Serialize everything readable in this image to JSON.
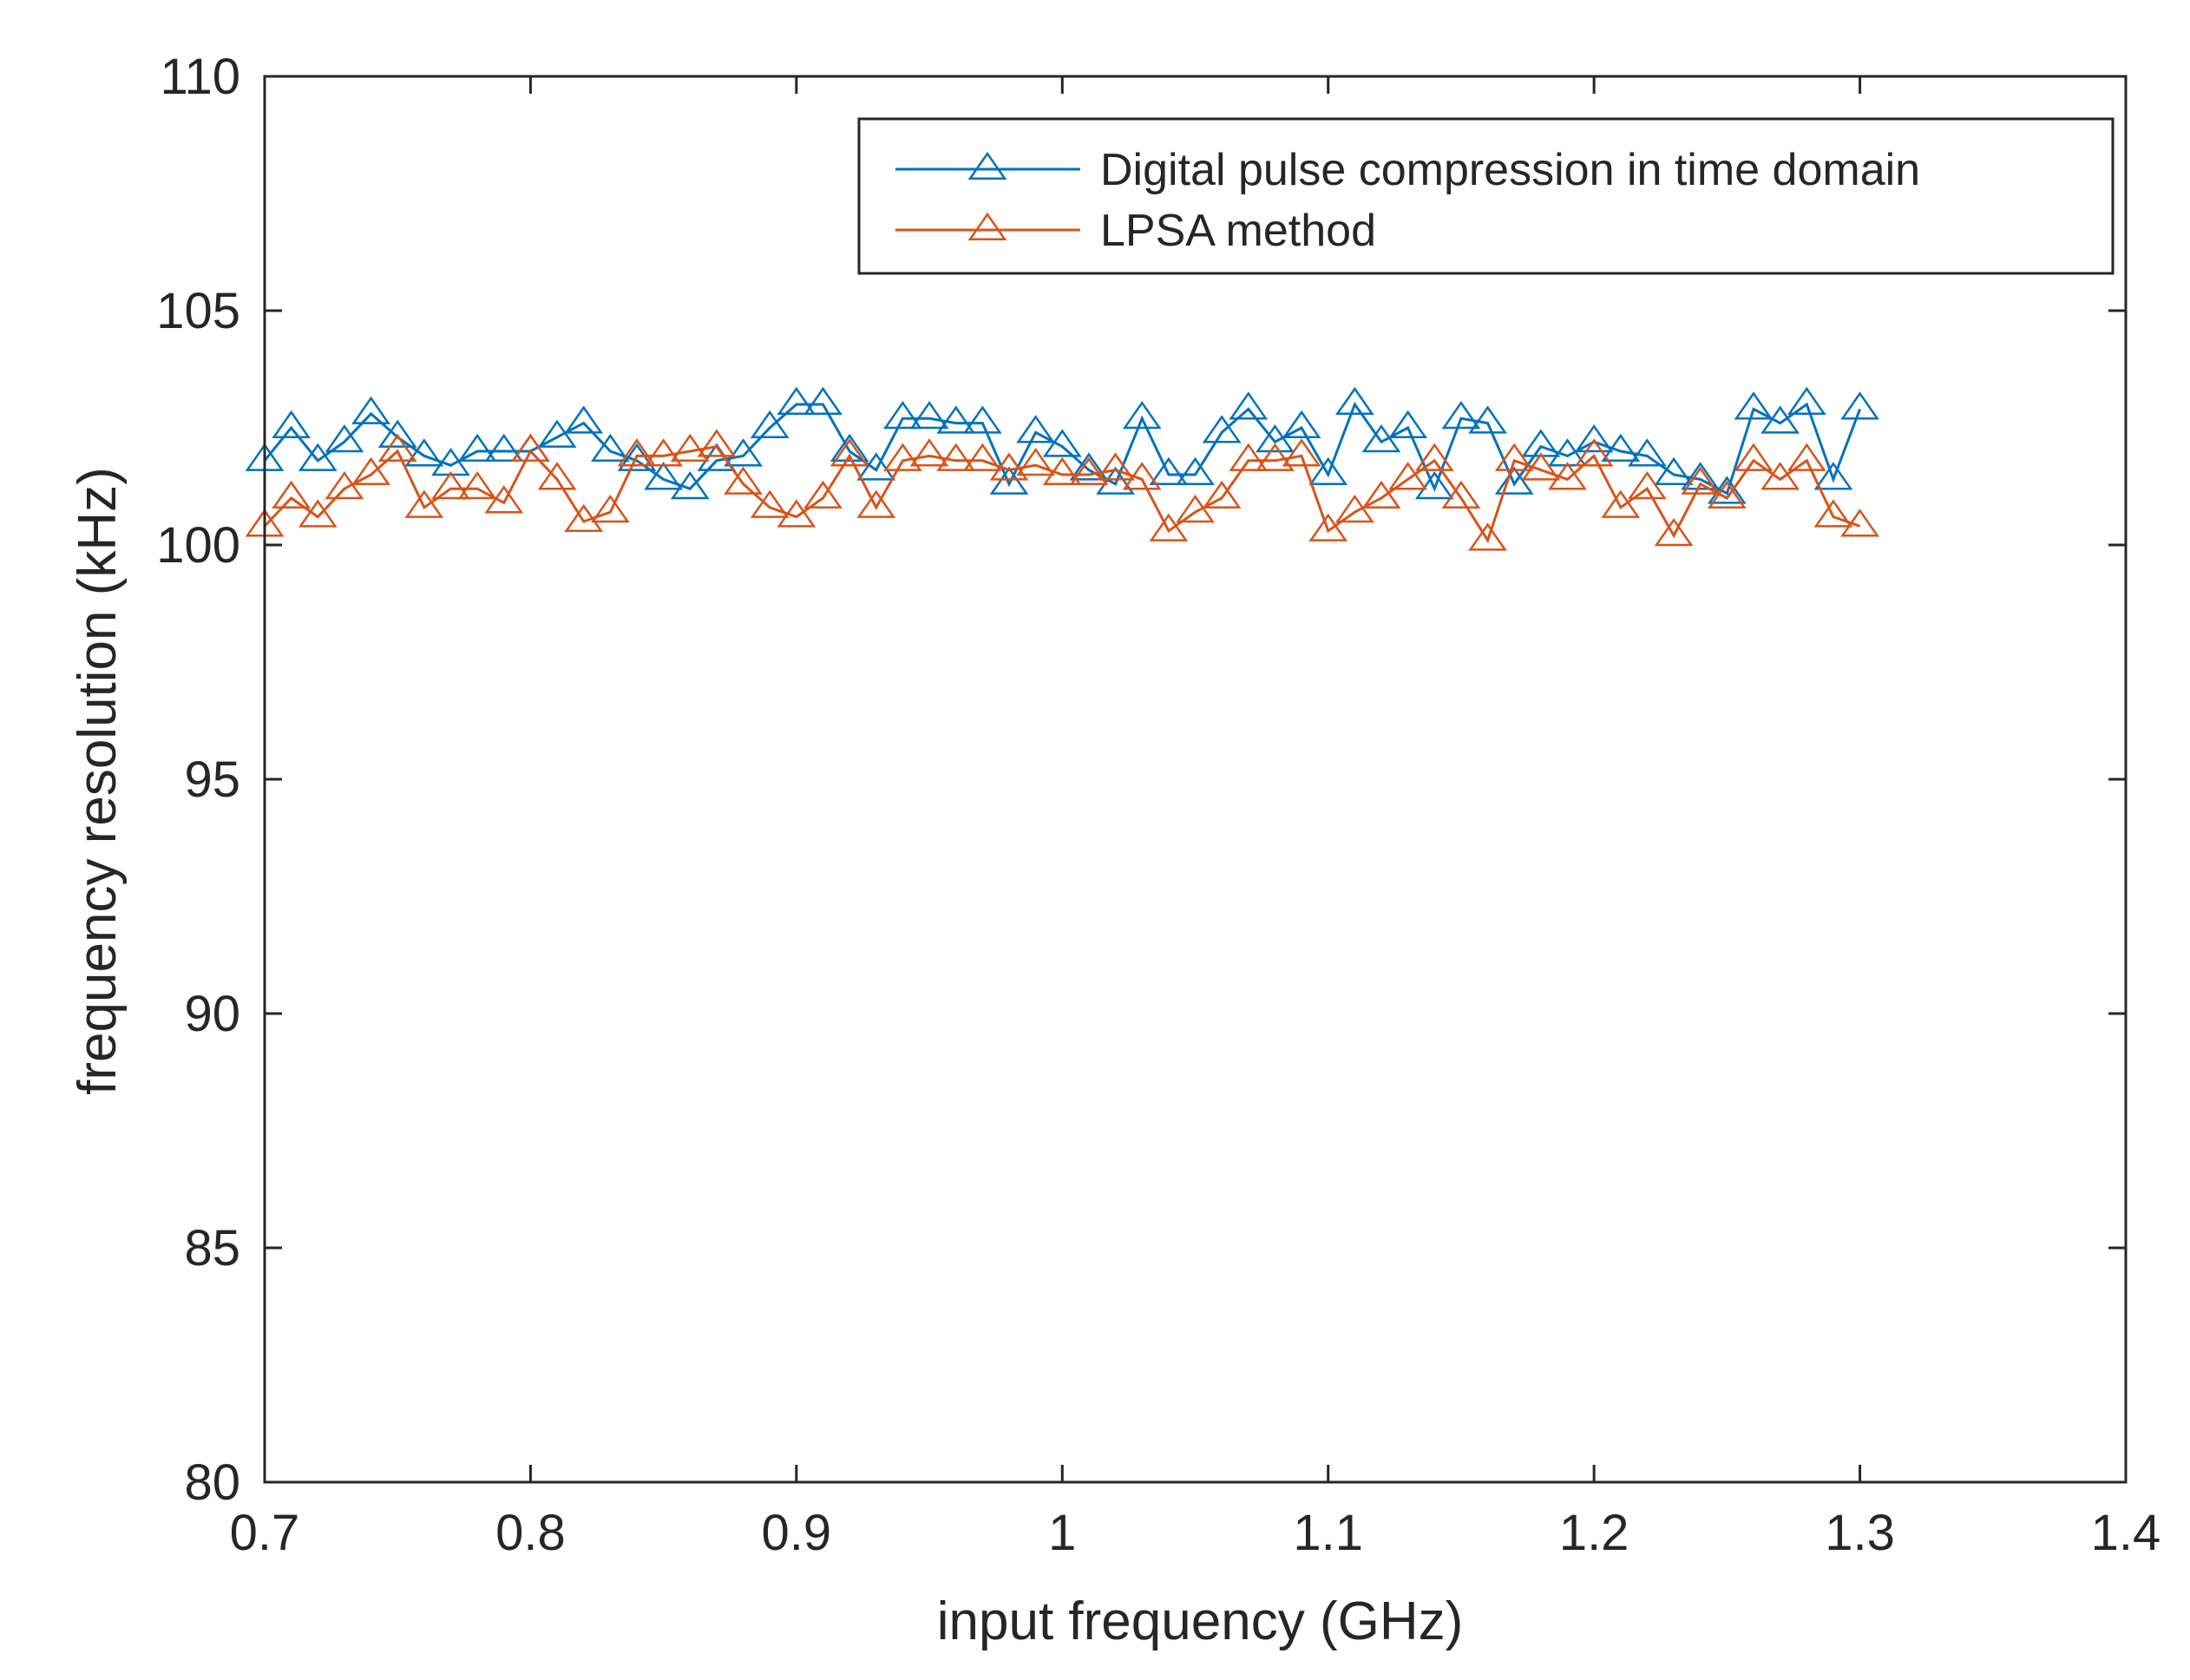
{
  "chart_data": {
    "type": "line",
    "title": "",
    "xlabel": "input frequency (GHz)",
    "ylabel": "frequency resolution (kHz)",
    "xlim": [
      0.7,
      1.4
    ],
    "ylim": [
      80,
      110
    ],
    "x_ticks": [
      0.7,
      0.8,
      0.9,
      1,
      1.1,
      1.2,
      1.3,
      1.4
    ],
    "x_tick_labels": [
      "0.7",
      "0.8",
      "0.9",
      "1",
      "1.1",
      "1.2",
      "1.3",
      "1.4"
    ],
    "y_ticks": [
      80,
      85,
      90,
      95,
      100,
      105,
      110
    ],
    "y_tick_labels": [
      "80",
      "85",
      "90",
      "95",
      "100",
      "105",
      "110"
    ],
    "grid": false,
    "legend_position": "top-right",
    "x": [
      0.7,
      0.71,
      0.72,
      0.73,
      0.74,
      0.75,
      0.76,
      0.77,
      0.78,
      0.79,
      0.8,
      0.81,
      0.82,
      0.83,
      0.84,
      0.85,
      0.86,
      0.87,
      0.88,
      0.89,
      0.9,
      0.91,
      0.92,
      0.93,
      0.94,
      0.95,
      0.96,
      0.97,
      0.98,
      0.99,
      1.0,
      1.01,
      1.02,
      1.03,
      1.04,
      1.05,
      1.06,
      1.07,
      1.08,
      1.09,
      1.1,
      1.11,
      1.12,
      1.13,
      1.14,
      1.15,
      1.16,
      1.17,
      1.18,
      1.19,
      1.2,
      1.21,
      1.22,
      1.23,
      1.24,
      1.25,
      1.26,
      1.27,
      1.28,
      1.29,
      1.3
    ],
    "series": [
      {
        "name": "Digital pulse compression in time domain",
        "color": "#0072BD",
        "marker": "triangle",
        "values": [
          101.8,
          102.5,
          101.8,
          102.2,
          102.8,
          102.3,
          101.9,
          101.7,
          102.0,
          102.0,
          102.0,
          102.3,
          102.6,
          102.0,
          101.8,
          101.4,
          101.2,
          101.8,
          101.9,
          102.5,
          103.0,
          103.0,
          102.0,
          101.6,
          102.7,
          102.7,
          102.6,
          102.6,
          101.3,
          102.4,
          102.1,
          101.6,
          101.3,
          102.7,
          101.5,
          101.5,
          102.4,
          102.9,
          102.2,
          102.5,
          101.5,
          103.0,
          102.2,
          102.5,
          101.2,
          102.7,
          102.6,
          101.3,
          102.1,
          101.9,
          102.2,
          102.0,
          101.9,
          101.5,
          101.4,
          101.1,
          102.9,
          102.6,
          103.0,
          101.4,
          102.9
        ]
      },
      {
        "name": "LPSA method",
        "color": "#D95319",
        "marker": "triangle",
        "values": [
          100.4,
          101.0,
          100.6,
          101.2,
          101.5,
          102.0,
          100.8,
          101.2,
          101.2,
          100.9,
          102.0,
          101.4,
          100.5,
          100.7,
          101.9,
          101.9,
          102.0,
          102.1,
          101.3,
          100.8,
          100.6,
          101.0,
          101.9,
          100.8,
          101.8,
          101.9,
          101.8,
          101.8,
          101.6,
          101.7,
          101.5,
          101.5,
          101.6,
          101.4,
          100.3,
          100.7,
          101.0,
          101.8,
          101.8,
          101.9,
          100.3,
          100.7,
          101.0,
          101.4,
          101.8,
          101.0,
          100.1,
          101.8,
          101.6,
          101.4,
          101.9,
          100.8,
          101.2,
          100.2,
          101.3,
          101.0,
          101.8,
          101.4,
          101.8,
          100.6,
          100.4
        ]
      }
    ]
  }
}
